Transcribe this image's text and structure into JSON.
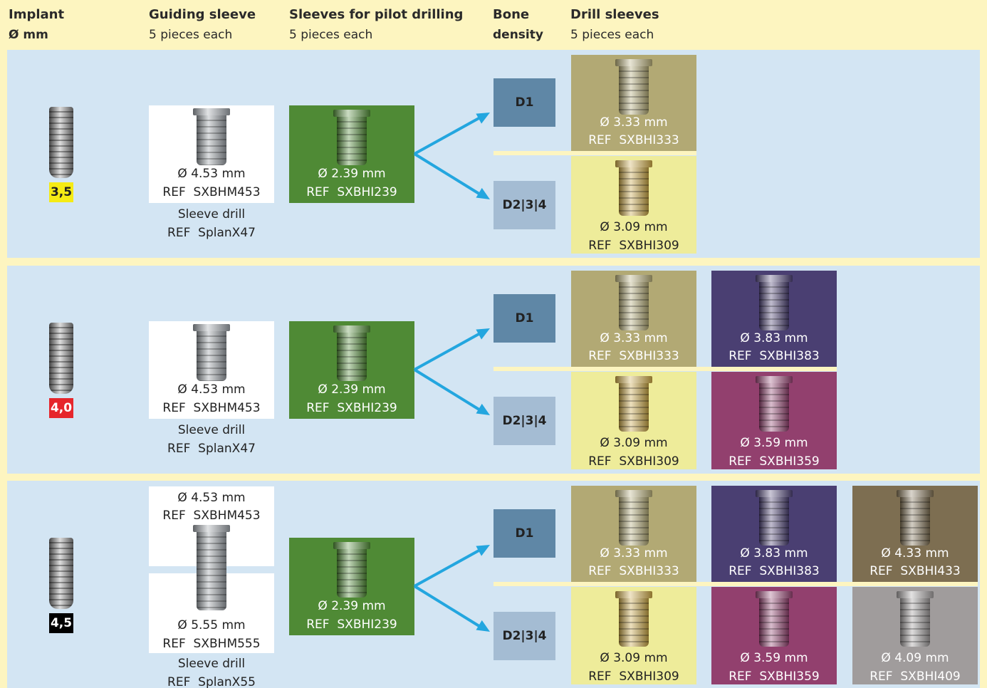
{
  "header": {
    "columns": [
      {
        "title": "Implant",
        "subtitle": "Ø mm"
      },
      {
        "title": "Guiding sleeve",
        "subtitle": "5 pieces each"
      },
      {
        "title": "Sleeves for pilot drilling",
        "subtitle": "5 pieces each"
      },
      {
        "title": "Bone",
        "subtitle": "density"
      },
      {
        "title": "Drill sleeves",
        "subtitle": "5 pieces each"
      }
    ]
  },
  "rows": [
    {
      "implant": {
        "label": "3,5",
        "badge_color": "#f5eb14"
      },
      "guiding_sleeves": [
        {
          "diameter": "Ø 4.53 mm",
          "ref": "REF  SXBHM453"
        }
      ],
      "sleeve_drill": {
        "name": "Sleeve drill",
        "ref": "REF  SplanX47"
      },
      "pilot_sleeve": {
        "diameter": "Ø 2.39 mm",
        "ref": "REF  SXBHI239",
        "color": "#4f8a35"
      },
      "densities": [
        {
          "label": "D1",
          "color": "#5f87a6",
          "sleeves": [
            {
              "diameter": "Ø 3.33 mm",
              "ref": "REF  SXBHI333",
              "color": "#b2a974"
            }
          ]
        },
        {
          "label": "D2|3|4",
          "color": "#a4bcd3",
          "sleeves": [
            {
              "diameter": "Ø 3.09 mm",
              "ref": "REF  SXBHI309",
              "color": "#eeec9a"
            }
          ]
        }
      ]
    },
    {
      "implant": {
        "label": "4,0",
        "badge_color": "#e6262c"
      },
      "guiding_sleeves": [
        {
          "diameter": "Ø 4.53 mm",
          "ref": "REF  SXBHM453"
        }
      ],
      "sleeve_drill": {
        "name": "Sleeve drill",
        "ref": "REF  SplanX47"
      },
      "pilot_sleeve": {
        "diameter": "Ø 2.39 mm",
        "ref": "REF  SXBHI239",
        "color": "#4f8a35"
      },
      "densities": [
        {
          "label": "D1",
          "color": "#5f87a6",
          "sleeves": [
            {
              "diameter": "Ø 3.33 mm",
              "ref": "REF  SXBHI333",
              "color": "#b2a974"
            },
            {
              "diameter": "Ø 3.83 mm",
              "ref": "REF  SXBHI383",
              "color": "#4a3f72"
            }
          ]
        },
        {
          "label": "D2|3|4",
          "color": "#a4bcd3",
          "sleeves": [
            {
              "diameter": "Ø 3.09 mm",
              "ref": "REF  SXBHI309",
              "color": "#eeec9a"
            },
            {
              "diameter": "Ø 3.59 mm",
              "ref": "REF  SXBHI359",
              "color": "#92406e"
            }
          ]
        }
      ]
    },
    {
      "implant": {
        "label": "4,5",
        "badge_color": "#000000"
      },
      "guiding_sleeves": [
        {
          "diameter": "Ø 4.53 mm",
          "ref": "REF  SXBHM453"
        },
        {
          "diameter": "Ø 5.55 mm",
          "ref": "REF  SXBHM555"
        }
      ],
      "sleeve_drill": {
        "name": "Sleeve drill",
        "ref": "REF  SplanX55"
      },
      "pilot_sleeve": {
        "diameter": "Ø 2.39 mm",
        "ref": "REF  SXBHI239",
        "color": "#4f8a35"
      },
      "densities": [
        {
          "label": "D1",
          "color": "#5f87a6",
          "sleeves": [
            {
              "diameter": "Ø 3.33 mm",
              "ref": "REF  SXBHI333",
              "color": "#b2a974"
            },
            {
              "diameter": "Ø 3.83 mm",
              "ref": "REF  SXBHI383",
              "color": "#4a3f72"
            },
            {
              "diameter": "Ø 4.33 mm",
              "ref": "REF  SXBHI433",
              "color": "#7d6e51"
            }
          ]
        },
        {
          "label": "D2|3|4",
          "color": "#a4bcd3",
          "sleeves": [
            {
              "diameter": "Ø 3.09 mm",
              "ref": "REF  SXBHI309",
              "color": "#eeec9a"
            },
            {
              "diameter": "Ø 3.59 mm",
              "ref": "REF  SXBHI359",
              "color": "#92406e"
            },
            {
              "diameter": "Ø 4.09 mm",
              "ref": "REF  SXBHI409",
              "color": "#a09c9c"
            }
          ]
        }
      ]
    }
  ]
}
